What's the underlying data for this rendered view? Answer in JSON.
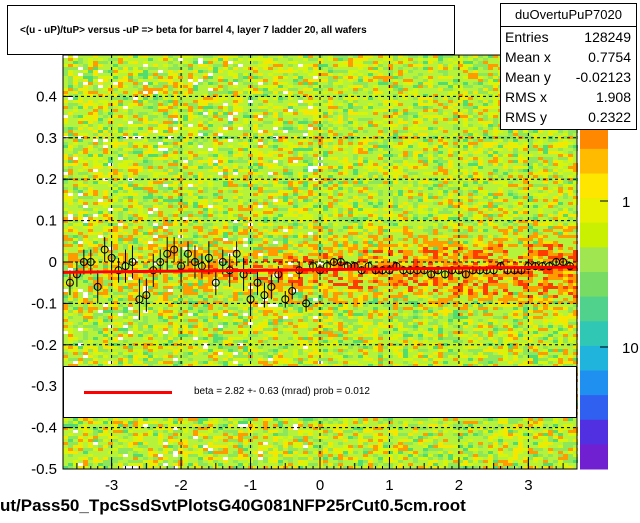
{
  "title": "<(u - uP)/tuP> versus  -uP => beta for barrel 4, layer 7 ladder 20, all wafers",
  "stats": {
    "name": "duOvertuPuP7020",
    "rows": [
      {
        "label": "Entries",
        "value": "128249"
      },
      {
        "label": "Mean x",
        "value": "0.7754"
      },
      {
        "label": "Mean y",
        "value": "-0.02123"
      },
      {
        "label": "RMS x",
        "value": "1.908"
      },
      {
        "label": "RMS y",
        "value": "0.2322"
      }
    ]
  },
  "fit_legend": "beta =    2.82 +-  0.63 (mrad) prob = 0.012",
  "footer": "ut/Pass50_TpcSsdSvtPlotsG40G081NFP25rCut0.5cm.root",
  "colors": {
    "fit_line": "#ff0000",
    "frame": "#000000"
  },
  "chart_data": {
    "type": "heatmap",
    "xlim": [
      -3.7,
      3.7
    ],
    "ylim": [
      -0.5,
      0.5
    ],
    "x_ticks": [
      -3,
      -2,
      -1,
      0,
      1,
      2,
      3
    ],
    "x_tick_labels": [
      "-3",
      "-2",
      "-1",
      "0",
      "1",
      "2",
      "3"
    ],
    "y_ticks": [
      0.4,
      0.3,
      0.2,
      0.1,
      0,
      -0.1,
      -0.2,
      -0.3,
      -0.4,
      -0.5
    ],
    "y_tick_labels": [
      "0.4",
      "0.3",
      "0.2",
      "0.1",
      "0",
      "-0.1",
      "-0.2",
      "-0.3",
      "-0.4",
      "-0.5"
    ],
    "grid": true,
    "colorbar": {
      "scale": "log",
      "tick_labels": [
        "1",
        "10"
      ]
    },
    "fit": {
      "x": [
        -3.7,
        3.7
      ],
      "y": [
        -0.025,
        -0.012
      ]
    },
    "profile_points": {
      "x": [
        -3.6,
        -3.5,
        -3.4,
        -3.3,
        -3.2,
        -3.1,
        -3.0,
        -2.9,
        -2.8,
        -2.7,
        -2.6,
        -2.5,
        -2.4,
        -2.3,
        -2.2,
        -2.1,
        -2.0,
        -1.9,
        -1.8,
        -1.7,
        -1.6,
        -1.5,
        -1.4,
        -1.3,
        -1.2,
        -1.1,
        -1.0,
        -0.9,
        -0.8,
        -0.7,
        -0.6,
        -0.5,
        -0.4,
        -0.3,
        -0.2,
        -0.1,
        0.0,
        0.1,
        0.2,
        0.3,
        0.4,
        0.5,
        0.6,
        0.7,
        0.8,
        0.9,
        1.0,
        1.1,
        1.2,
        1.3,
        1.4,
        1.5,
        1.6,
        1.7,
        1.8,
        1.9,
        2.0,
        2.1,
        2.2,
        2.3,
        2.4,
        2.5,
        2.6,
        2.7,
        2.8,
        2.9,
        3.0,
        3.1,
        3.2,
        3.3,
        3.4,
        3.5,
        3.6
      ],
      "y": [
        -0.05,
        -0.03,
        0.0,
        0.0,
        -0.06,
        0.03,
        0.01,
        -0.02,
        -0.01,
        0.0,
        -0.09,
        -0.08,
        -0.02,
        0.0,
        0.02,
        0.03,
        -0.01,
        0.02,
        0.0,
        -0.01,
        0.01,
        -0.05,
        0.0,
        -0.02,
        0.02,
        -0.03,
        -0.09,
        -0.05,
        -0.08,
        -0.06,
        -0.03,
        -0.09,
        -0.07,
        -0.02,
        -0.1,
        -0.01,
        -0.02,
        -0.01,
        0.0,
        0.0,
        -0.01,
        -0.01,
        -0.02,
        -0.01,
        -0.02,
        -0.02,
        -0.02,
        -0.01,
        -0.02,
        -0.02,
        -0.02,
        -0.02,
        -0.03,
        -0.02,
        -0.03,
        -0.02,
        -0.02,
        -0.03,
        -0.02,
        -0.02,
        -0.02,
        -0.02,
        -0.01,
        -0.02,
        -0.02,
        -0.02,
        -0.01,
        -0.01,
        -0.01,
        -0.01,
        0.0,
        0.0,
        -0.01
      ],
      "yerr": [
        0.03,
        0.03,
        0.03,
        0.03,
        0.04,
        0.03,
        0.04,
        0.03,
        0.04,
        0.04,
        0.05,
        0.04,
        0.04,
        0.03,
        0.04,
        0.03,
        0.04,
        0.03,
        0.04,
        0.03,
        0.04,
        0.03,
        0.03,
        0.04,
        0.03,
        0.04,
        0.04,
        0.03,
        0.03,
        0.03,
        0.02,
        0.02,
        0.02,
        0.02,
        0.02,
        0.015,
        0.015,
        0.015,
        0.01,
        0.01,
        0.01,
        0.01,
        0.01,
        0.01,
        0.01,
        0.01,
        0.01,
        0.01,
        0.01,
        0.01,
        0.01,
        0.01,
        0.01,
        0.01,
        0.01,
        0.01,
        0.01,
        0.01,
        0.01,
        0.01,
        0.01,
        0.01,
        0.01,
        0.01,
        0.01,
        0.01,
        0.01,
        0.01,
        0.01,
        0.01,
        0.01,
        0.01,
        0.01
      ]
    }
  }
}
